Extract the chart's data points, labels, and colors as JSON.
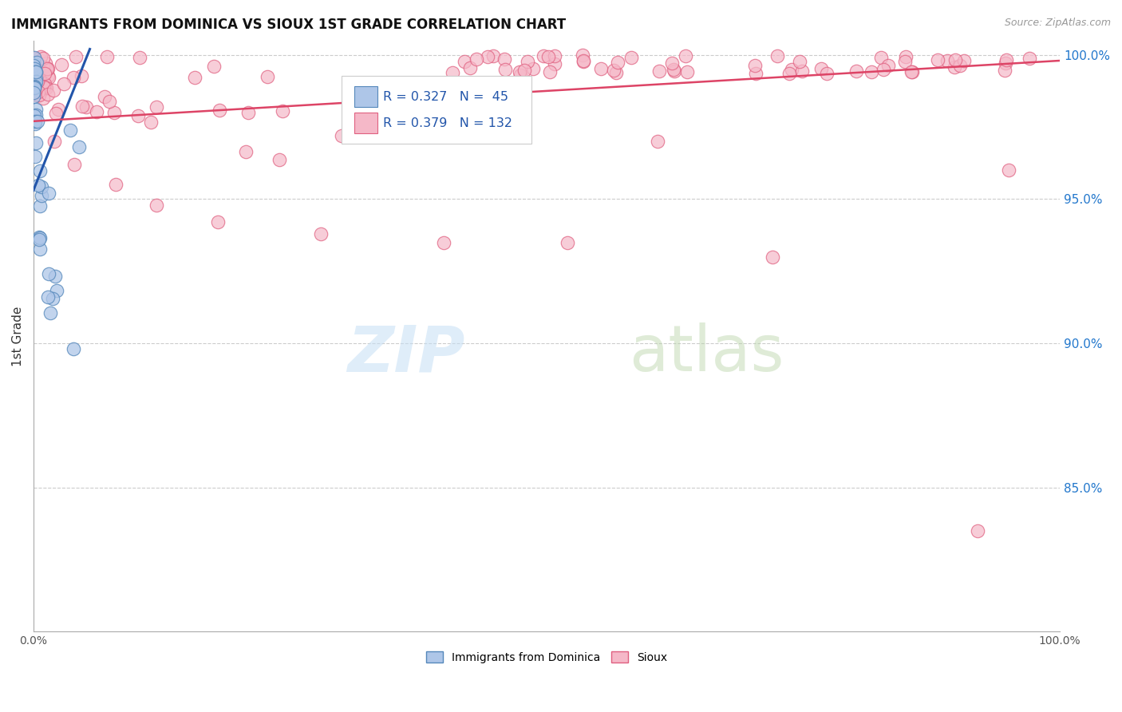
{
  "title": "IMMIGRANTS FROM DOMINICA VS SIOUX 1ST GRADE CORRELATION CHART",
  "source": "Source: ZipAtlas.com",
  "ylabel": "1st Grade",
  "legend_blue_label": "Immigrants from Dominica",
  "legend_pink_label": "Sioux",
  "R_blue": 0.327,
  "N_blue": 45,
  "R_pink": 0.379,
  "N_pink": 132,
  "blue_color": "#aec6e8",
  "pink_color": "#f5b8c8",
  "blue_edge_color": "#5588bb",
  "pink_edge_color": "#e06080",
  "blue_line_color": "#2255aa",
  "pink_line_color": "#dd4466",
  "ylim_min": 0.8,
  "ylim_max": 1.005,
  "y_ticks": [
    0.85,
    0.9,
    0.95,
    1.0
  ],
  "y_tick_labels": [
    "85.0%",
    "90.0%",
    "95.0%",
    "100.0%"
  ]
}
